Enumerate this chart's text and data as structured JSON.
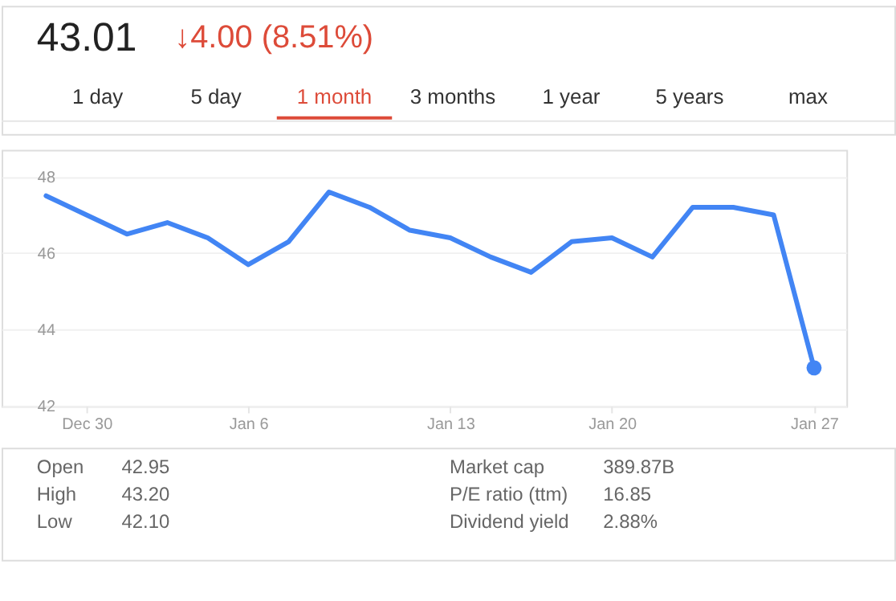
{
  "chart_data": {
    "type": "line",
    "title": "43.01",
    "subtitle": "↓4.00 (8.51%)",
    "categories": [
      null,
      "Dec 30",
      null,
      null,
      null,
      "Jan 6",
      null,
      null,
      null,
      null,
      "Jan 13",
      null,
      null,
      null,
      "Jan 20",
      null,
      null,
      null,
      null,
      "Jan 27"
    ],
    "series": [
      {
        "color": "#4285f4",
        "values": [
          47.5,
          47.0,
          46.5,
          46.8,
          46.4,
          45.7,
          46.3,
          47.6,
          47.2,
          46.6,
          46.4,
          45.9,
          45.5,
          46.3,
          46.4,
          45.9,
          47.2,
          47.2,
          47.0,
          43.0
        ]
      },
      {
        "type": "scatter",
        "color": "#4285f4",
        "x": [
          "Jan 27"
        ],
        "values": [
          43.0
        ]
      }
    ],
    "ylim": [
      42,
      48.7
    ],
    "yticks": [
      42,
      44,
      46,
      48
    ],
    "grid": "y",
    "annotations": [
      "1 day",
      "5 day",
      "1 month",
      "3 months",
      "1 year",
      "5 years",
      "max",
      "Open",
      "42.95",
      "High",
      "43.20",
      "Low",
      "42.10",
      "Market cap",
      "389.87B",
      "P/E ratio (ttm)",
      "16.85",
      "Dividend yield",
      "2.88%"
    ]
  }
}
